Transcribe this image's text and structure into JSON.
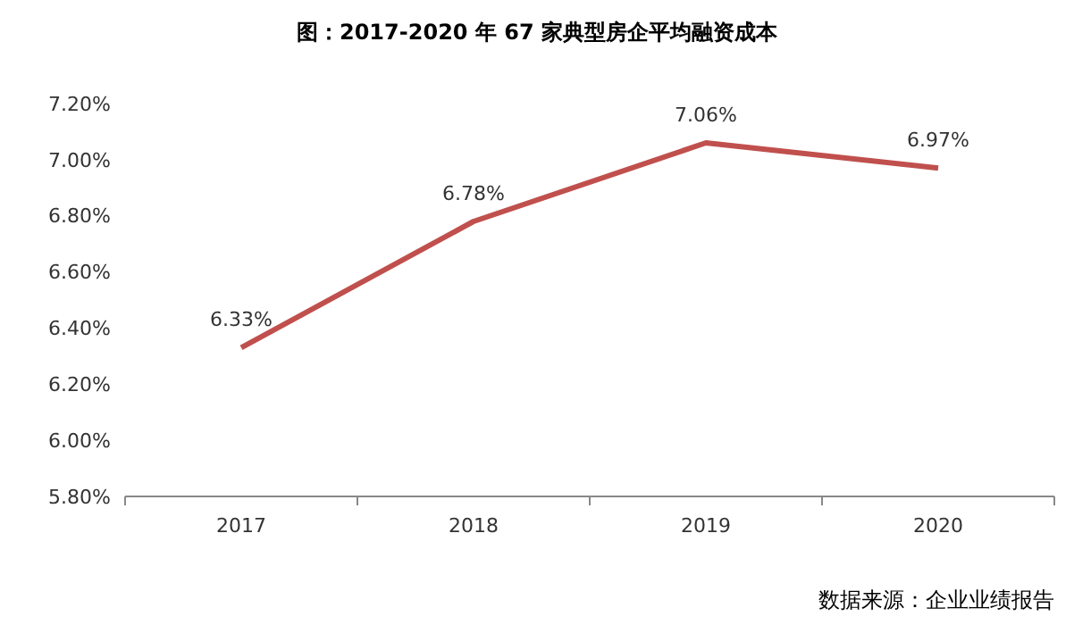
{
  "chart_data": {
    "type": "line",
    "title": "图：2017-2020 年 67 家典型房企平均融资成本",
    "categories": [
      "2017",
      "2018",
      "2019",
      "2020"
    ],
    "series": [
      {
        "color": "#c0504d",
        "values": [
          6.33,
          6.78,
          7.06,
          6.97
        ],
        "value_labels": [
          "6.33%",
          "6.78%",
          "7.06%",
          "6.97%"
        ]
      }
    ],
    "ylim": [
      5.8,
      7.2
    ],
    "yticks": [
      {
        "value": 5.8,
        "label": "5.80%"
      },
      {
        "value": 6.0,
        "label": "6.00%"
      },
      {
        "value": 6.2,
        "label": "6.20%"
      },
      {
        "value": 6.4,
        "label": "6.40%"
      },
      {
        "value": 6.6,
        "label": "6.60%"
      },
      {
        "value": 6.8,
        "label": "6.80%"
      },
      {
        "value": 7.0,
        "label": "7.00%"
      },
      {
        "value": 7.2,
        "label": "7.20%"
      }
    ],
    "grid": false,
    "marker": "none",
    "line_style": "solid",
    "annotations": [
      "数据来源：企业业绩报告"
    ]
  }
}
